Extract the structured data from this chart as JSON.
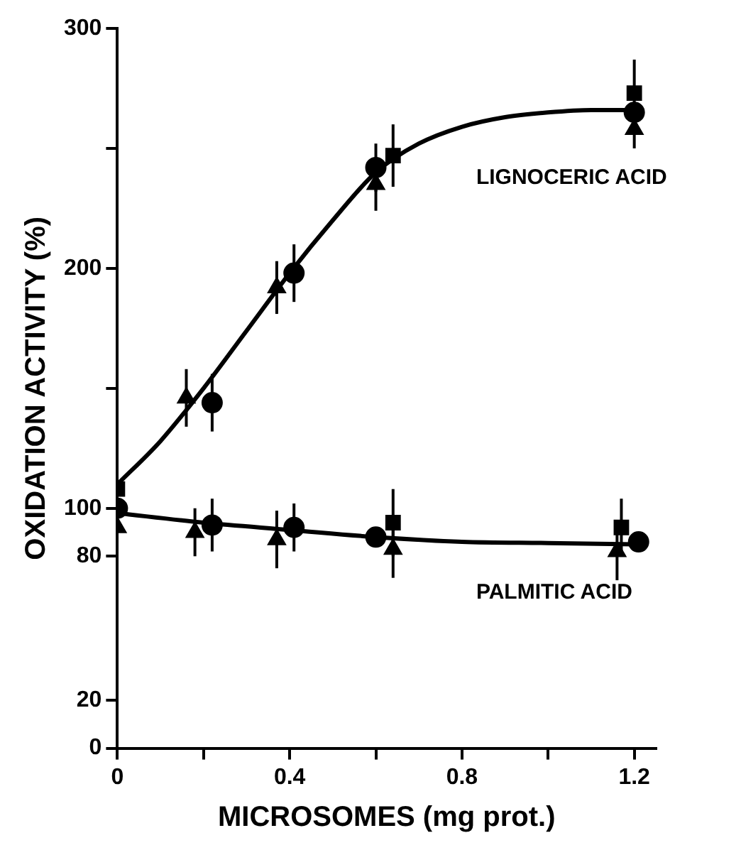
{
  "chart_data": {
    "type": "scatter",
    "xlabel": "MICROSOMES (mg prot.)",
    "ylabel": "OXIDATION ACTIVITY (%)",
    "xlim": [
      0,
      1.25
    ],
    "xticks": [
      0,
      {
        "value": 0.2,
        "label": null
      },
      0.4,
      {
        "value": 0.6,
        "label": null
      },
      0.8,
      {
        "value": 1.0,
        "label": null
      },
      1.2
    ],
    "ylim": [
      0,
      300
    ],
    "yticks": [
      0,
      20,
      80,
      100,
      {
        "value": 150,
        "label": null
      },
      200,
      {
        "value": 250,
        "label": null
      },
      300
    ],
    "grid": false,
    "legend": false,
    "series": [
      {
        "type": "line",
        "name": "LIGNOCERIC ACID",
        "marker": "none",
        "color": "#000000",
        "x": [
          0,
          0.1,
          0.2,
          0.3,
          0.4,
          0.5,
          0.6,
          0.7,
          0.8,
          0.9,
          1.0,
          1.1,
          1.2
        ],
        "values": [
          110,
          128,
          150,
          174,
          198,
          220,
          240,
          252,
          259,
          263,
          265,
          266,
          266
        ]
      },
      {
        "type": "line",
        "name": "PALMITIC ACID",
        "marker": "none",
        "color": "#000000",
        "x": [
          0,
          0.2,
          0.4,
          0.6,
          0.8,
          1.0,
          1.2
        ],
        "values": [
          98,
          94,
          91,
          88,
          86,
          85.5,
          85
        ]
      },
      {
        "marker": "circle",
        "color": "#000000",
        "x": [
          0.22,
          0.41,
          0.6,
          1.2
        ],
        "values": [
          144,
          198,
          242,
          265
        ],
        "errors": [
          12,
          12,
          10,
          null
        ]
      },
      {
        "marker": "square",
        "color": "#000000",
        "x": [
          0,
          0.64,
          1.2
        ],
        "values": [
          108,
          247,
          273
        ],
        "errors": [
          null,
          13,
          14
        ]
      },
      {
        "marker": "triangle",
        "color": "#000000",
        "x": [
          0.16,
          0.37,
          0.6,
          1.2
        ],
        "values": [
          146,
          192,
          235,
          258
        ],
        "errors": [
          12,
          11,
          11,
          8
        ]
      },
      {
        "marker": "circle",
        "color": "#000000",
        "x": [
          0,
          0.22,
          0.41,
          0.6,
          1.21
        ],
        "values": [
          100,
          93,
          92,
          88,
          86
        ],
        "errors": [
          null,
          11,
          10,
          null,
          null
        ]
      },
      {
        "marker": "square",
        "color": "#000000",
        "x": [
          0.64,
          1.17
        ],
        "values": [
          94,
          92
        ],
        "errors": [
          14,
          12
        ]
      },
      {
        "marker": "triangle",
        "color": "#000000",
        "x": [
          0,
          0.18,
          0.37,
          0.64,
          1.16
        ],
        "values": [
          92,
          90,
          87,
          83,
          82
        ],
        "errors": [
          null,
          10,
          12,
          12,
          12
        ]
      }
    ]
  }
}
